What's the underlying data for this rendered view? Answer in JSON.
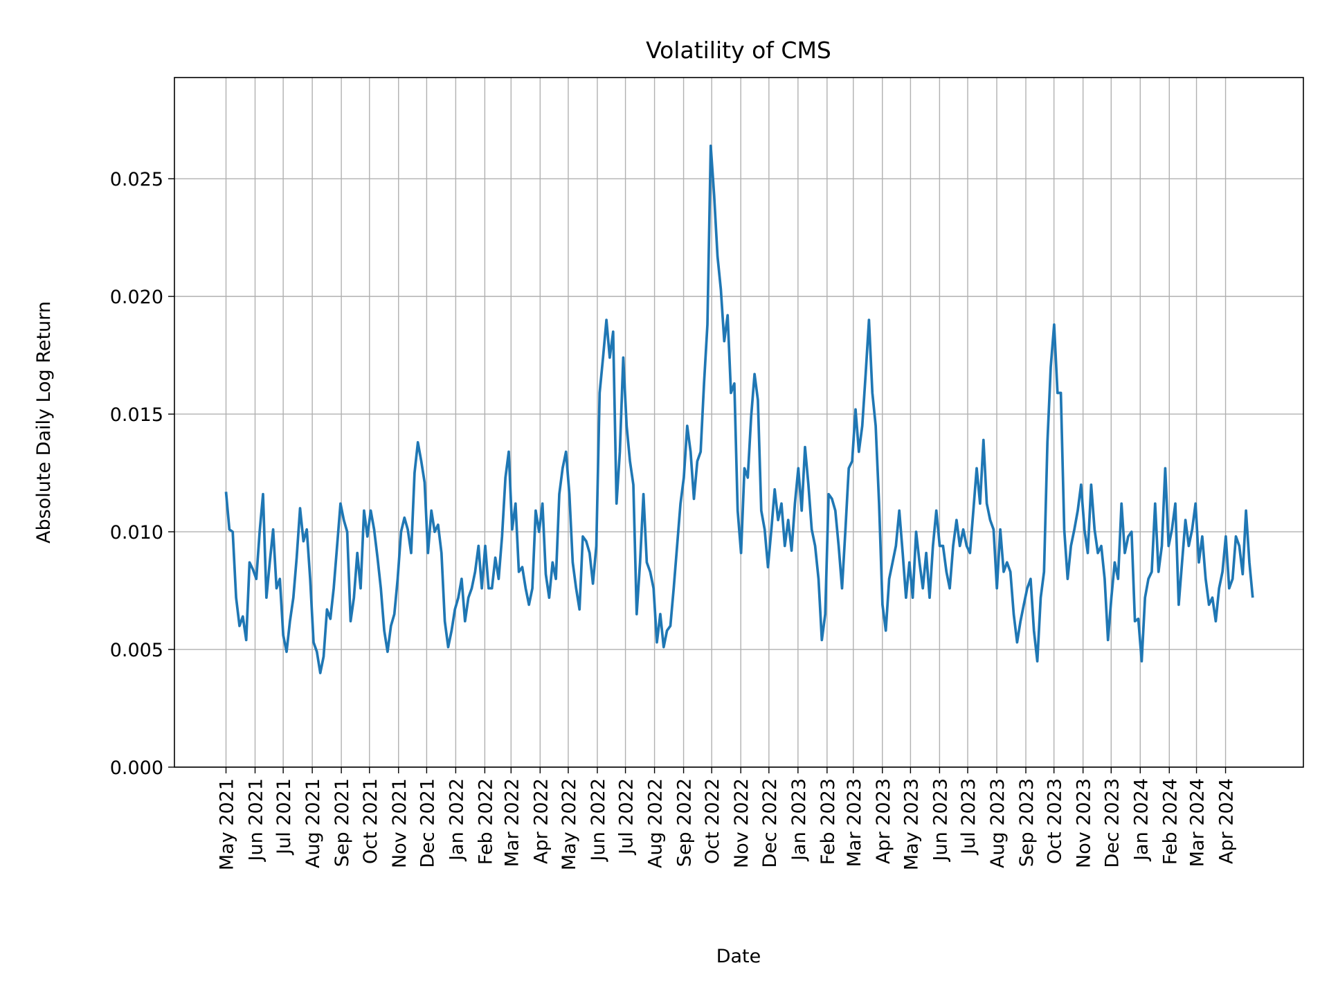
{
  "chart_data": {
    "type": "line",
    "title": "Volatility of CMS",
    "xlabel": "Date",
    "ylabel": "Absolute Daily Log Return",
    "xlim": [
      "2021-03-07",
      "2024-06-23"
    ],
    "ylim": [
      0,
      0.0293
    ],
    "grid": true,
    "line_color": "#1f77b4",
    "yticks": [
      0,
      0.005,
      0.01,
      0.015,
      0.02,
      0.025
    ],
    "ytick_labels": [
      "0.000",
      "0.005",
      "0.010",
      "0.015",
      "0.020",
      "0.025"
    ],
    "xticks": [
      "2021-05-01",
      "2021-06-01",
      "2021-07-01",
      "2021-08-01",
      "2021-09-01",
      "2021-10-01",
      "2021-11-01",
      "2021-12-01",
      "2022-01-01",
      "2022-02-01",
      "2022-03-01",
      "2022-04-01",
      "2022-05-01",
      "2022-06-01",
      "2022-07-01",
      "2022-08-01",
      "2022-09-01",
      "2022-10-01",
      "2022-11-01",
      "2022-12-01",
      "2023-01-01",
      "2023-02-01",
      "2023-03-01",
      "2023-04-01",
      "2023-05-01",
      "2023-06-01",
      "2023-07-01",
      "2023-08-01",
      "2023-09-01",
      "2023-10-01",
      "2023-11-01",
      "2023-12-01",
      "2024-01-01",
      "2024-02-01",
      "2024-03-01",
      "2024-04-01"
    ],
    "xtick_labels": [
      "May 2021",
      "Jun 2021",
      "Jul 2021",
      "Aug 2021",
      "Sep 2021",
      "Oct 2021",
      "Nov 2021",
      "Dec 2021",
      "Jan 2022",
      "Feb 2022",
      "Mar 2022",
      "Apr 2022",
      "May 2022",
      "Jun 2022",
      "Jul 2022",
      "Aug 2022",
      "Sep 2022",
      "Oct 2022",
      "Nov 2022",
      "Dec 2022",
      "Jan 2023",
      "Feb 2023",
      "Mar 2023",
      "Apr 2023",
      "May 2023",
      "Jun 2023",
      "Jul 2023",
      "Aug 2023",
      "Sep 2023",
      "Oct 2023",
      "Nov 2023",
      "Dec 2023",
      "Jan 2024",
      "Feb 2024",
      "Mar 2024",
      "Apr 2024"
    ],
    "series": [
      {
        "x_range": [
          "2021-05-01",
          "2024-04-30"
        ],
        "values": [
          0.0117,
          0.0101,
          0.01,
          0.0072,
          0.006,
          0.0064,
          0.0054,
          0.0087,
          0.0084,
          0.008,
          0.01,
          0.0116,
          0.0072,
          0.0087,
          0.0101,
          0.0076,
          0.008,
          0.0056,
          0.0049,
          0.0062,
          0.0072,
          0.0089,
          0.011,
          0.0096,
          0.0101,
          0.008,
          0.0053,
          0.0049,
          0.004,
          0.0047,
          0.0067,
          0.0063,
          0.0076,
          0.0094,
          0.0112,
          0.0105,
          0.01,
          0.0062,
          0.0072,
          0.0091,
          0.0076,
          0.0109,
          0.0098,
          0.0109,
          0.0101,
          0.0089,
          0.0076,
          0.0058,
          0.0049,
          0.006,
          0.0065,
          0.008,
          0.01,
          0.0106,
          0.0101,
          0.0091,
          0.0125,
          0.0138,
          0.013,
          0.0121,
          0.0091,
          0.0109,
          0.01,
          0.0103,
          0.0091,
          0.0062,
          0.0051,
          0.0058,
          0.0067,
          0.0072,
          0.008,
          0.0062,
          0.0072,
          0.0076,
          0.0083,
          0.0094,
          0.0076,
          0.0094,
          0.0076,
          0.0076,
          0.0089,
          0.008,
          0.0098,
          0.0123,
          0.0134,
          0.0101,
          0.0112,
          0.0083,
          0.0085,
          0.0076,
          0.0069,
          0.0076,
          0.0109,
          0.01,
          0.0112,
          0.0082,
          0.0072,
          0.0087,
          0.008,
          0.0116,
          0.0127,
          0.0134,
          0.0116,
          0.0087,
          0.0076,
          0.0067,
          0.0098,
          0.0096,
          0.0091,
          0.0078,
          0.0094,
          0.0159,
          0.0174,
          0.019,
          0.0174,
          0.0185,
          0.0112,
          0.0134,
          0.0174,
          0.0145,
          0.013,
          0.012,
          0.0065,
          0.0087,
          0.0116,
          0.0087,
          0.0083,
          0.0076,
          0.0053,
          0.0065,
          0.0051,
          0.0058,
          0.006,
          0.0076,
          0.0094,
          0.0112,
          0.0123,
          0.0145,
          0.0134,
          0.0114,
          0.013,
          0.0134,
          0.0163,
          0.0188,
          0.0264,
          0.0243,
          0.0217,
          0.0203,
          0.0181,
          0.0192,
          0.0159,
          0.0163,
          0.0109,
          0.0091,
          0.0127,
          0.0123,
          0.0149,
          0.0167,
          0.0156,
          0.0109,
          0.0101,
          0.0085,
          0.0101,
          0.0118,
          0.0105,
          0.0112,
          0.0094,
          0.0105,
          0.0092,
          0.0112,
          0.0127,
          0.0109,
          0.0136,
          0.012,
          0.0101,
          0.0094,
          0.008,
          0.0054,
          0.0065,
          0.0116,
          0.0114,
          0.0109,
          0.0094,
          0.0076,
          0.0101,
          0.0127,
          0.013,
          0.0152,
          0.0134,
          0.0145,
          0.0167,
          0.019,
          0.0159,
          0.0145,
          0.0112,
          0.0069,
          0.0058,
          0.008,
          0.0087,
          0.0094,
          0.0109,
          0.0091,
          0.0072,
          0.0087,
          0.0072,
          0.01,
          0.0087,
          0.0076,
          0.0091,
          0.0072,
          0.0094,
          0.0109,
          0.0094,
          0.0094,
          0.0083,
          0.0076,
          0.0094,
          0.0105,
          0.0094,
          0.0101,
          0.0094,
          0.0091,
          0.0109,
          0.0127,
          0.0112,
          0.0139,
          0.0112,
          0.0105,
          0.0101,
          0.0076,
          0.0101,
          0.0083,
          0.0087,
          0.0083,
          0.0065,
          0.0053,
          0.0062,
          0.0069,
          0.0076,
          0.008,
          0.0058,
          0.0045,
          0.0072,
          0.0083,
          0.0138,
          0.017,
          0.0188,
          0.0159,
          0.0159,
          0.0101,
          0.008,
          0.0094,
          0.0101,
          0.0109,
          0.012,
          0.0101,
          0.0091,
          0.012,
          0.0101,
          0.0091,
          0.0094,
          0.008,
          0.0054,
          0.0072,
          0.0087,
          0.008,
          0.0112,
          0.0091,
          0.0098,
          0.01,
          0.0062,
          0.0063,
          0.0045,
          0.0072,
          0.008,
          0.0083,
          0.0112,
          0.0083,
          0.0094,
          0.0127,
          0.0094,
          0.0101,
          0.0112,
          0.0069,
          0.0087,
          0.0105,
          0.0094,
          0.0101,
          0.0112,
          0.0087,
          0.0098,
          0.008,
          0.0069,
          0.0072,
          0.0062,
          0.0076,
          0.0083,
          0.0098,
          0.0076,
          0.008,
          0.0098,
          0.0094,
          0.0082,
          0.0109,
          0.0087,
          0.0072
        ]
      }
    ]
  }
}
